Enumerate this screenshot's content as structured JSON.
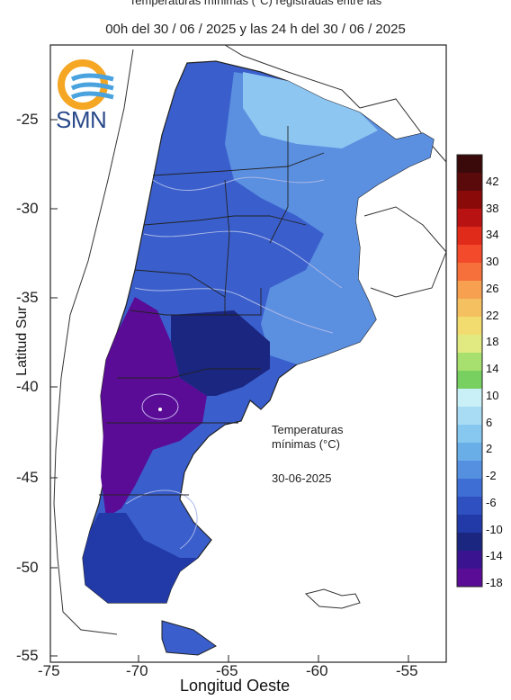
{
  "header": {
    "line1": "Temperaturas mínimas (°C) registradas entre las",
    "line2": "00h del 30 / 06 / 2025 y las 24 h del 30 / 06 / 2025"
  },
  "logo": {
    "text": "SMN",
    "icon": "smn-sun-waves-icon"
  },
  "axes": {
    "x_title": "Longitud Oeste",
    "y_title": "Latitud Sur",
    "x_ticks": [
      "-75",
      "-70",
      "-65",
      "-60",
      "-55"
    ],
    "y_ticks": [
      "-25",
      "-30",
      "-35",
      "-40",
      "-45",
      "-50",
      "-55"
    ]
  },
  "annotation": {
    "line1": "Temperaturas",
    "line2": "mínimas (°C)",
    "date": "30-06-2025"
  },
  "colorbar": {
    "labels": [
      "42",
      "38",
      "34",
      "30",
      "26",
      "22",
      "18",
      "14",
      "10",
      "6",
      "2",
      "-2",
      "-6",
      "-10",
      "-14",
      "-18"
    ],
    "colors": [
      "#3a0a0a",
      "#5a0a0a",
      "#8a0a0a",
      "#b81212",
      "#e02a1a",
      "#f24a2a",
      "#f5703a",
      "#f7a050",
      "#f5c060",
      "#f2dc70",
      "#e0ea80",
      "#a8e070",
      "#78d060",
      "#c8f0f6",
      "#a8dcf4",
      "#86c8f0",
      "#6aaee8",
      "#5590e0",
      "#3e6ed4",
      "#2e50c0",
      "#223aa8",
      "#1a2680",
      "#3a1490",
      "#5a0c96"
    ]
  }
}
